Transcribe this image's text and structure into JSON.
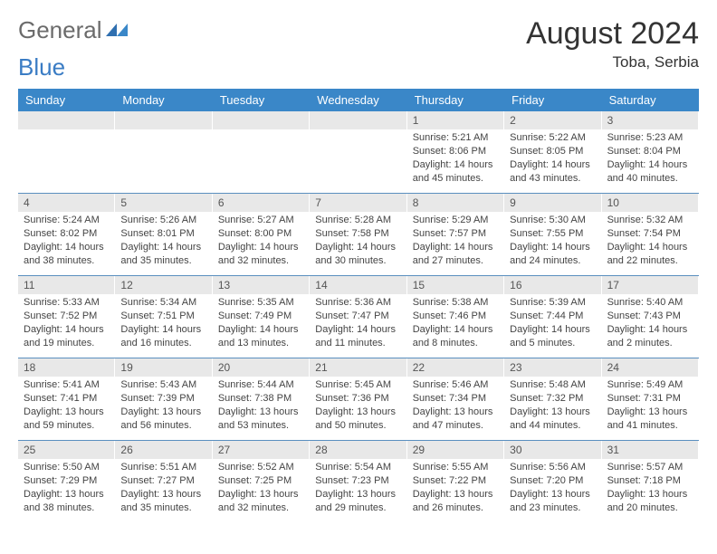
{
  "logo": {
    "general": "General",
    "blue": "Blue"
  },
  "title": "August 2024",
  "location": "Toba, Serbia",
  "colors": {
    "header_bg": "#3a87c8",
    "header_text": "#ffffff",
    "daynum_bg": "#e8e8e8",
    "week_divider": "#5a8fbf",
    "body_text": "#444444",
    "title_text": "#333333"
  },
  "weekdays": [
    "Sunday",
    "Monday",
    "Tuesday",
    "Wednesday",
    "Thursday",
    "Friday",
    "Saturday"
  ],
  "weeks": [
    [
      {
        "n": "",
        "sr": "",
        "ss": "",
        "dl1": "",
        "dl2": ""
      },
      {
        "n": "",
        "sr": "",
        "ss": "",
        "dl1": "",
        "dl2": ""
      },
      {
        "n": "",
        "sr": "",
        "ss": "",
        "dl1": "",
        "dl2": ""
      },
      {
        "n": "",
        "sr": "",
        "ss": "",
        "dl1": "",
        "dl2": ""
      },
      {
        "n": "1",
        "sr": "Sunrise: 5:21 AM",
        "ss": "Sunset: 8:06 PM",
        "dl1": "Daylight: 14 hours",
        "dl2": "and 45 minutes."
      },
      {
        "n": "2",
        "sr": "Sunrise: 5:22 AM",
        "ss": "Sunset: 8:05 PM",
        "dl1": "Daylight: 14 hours",
        "dl2": "and 43 minutes."
      },
      {
        "n": "3",
        "sr": "Sunrise: 5:23 AM",
        "ss": "Sunset: 8:04 PM",
        "dl1": "Daylight: 14 hours",
        "dl2": "and 40 minutes."
      }
    ],
    [
      {
        "n": "4",
        "sr": "Sunrise: 5:24 AM",
        "ss": "Sunset: 8:02 PM",
        "dl1": "Daylight: 14 hours",
        "dl2": "and 38 minutes."
      },
      {
        "n": "5",
        "sr": "Sunrise: 5:26 AM",
        "ss": "Sunset: 8:01 PM",
        "dl1": "Daylight: 14 hours",
        "dl2": "and 35 minutes."
      },
      {
        "n": "6",
        "sr": "Sunrise: 5:27 AM",
        "ss": "Sunset: 8:00 PM",
        "dl1": "Daylight: 14 hours",
        "dl2": "and 32 minutes."
      },
      {
        "n": "7",
        "sr": "Sunrise: 5:28 AM",
        "ss": "Sunset: 7:58 PM",
        "dl1": "Daylight: 14 hours",
        "dl2": "and 30 minutes."
      },
      {
        "n": "8",
        "sr": "Sunrise: 5:29 AM",
        "ss": "Sunset: 7:57 PM",
        "dl1": "Daylight: 14 hours",
        "dl2": "and 27 minutes."
      },
      {
        "n": "9",
        "sr": "Sunrise: 5:30 AM",
        "ss": "Sunset: 7:55 PM",
        "dl1": "Daylight: 14 hours",
        "dl2": "and 24 minutes."
      },
      {
        "n": "10",
        "sr": "Sunrise: 5:32 AM",
        "ss": "Sunset: 7:54 PM",
        "dl1": "Daylight: 14 hours",
        "dl2": "and 22 minutes."
      }
    ],
    [
      {
        "n": "11",
        "sr": "Sunrise: 5:33 AM",
        "ss": "Sunset: 7:52 PM",
        "dl1": "Daylight: 14 hours",
        "dl2": "and 19 minutes."
      },
      {
        "n": "12",
        "sr": "Sunrise: 5:34 AM",
        "ss": "Sunset: 7:51 PM",
        "dl1": "Daylight: 14 hours",
        "dl2": "and 16 minutes."
      },
      {
        "n": "13",
        "sr": "Sunrise: 5:35 AM",
        "ss": "Sunset: 7:49 PM",
        "dl1": "Daylight: 14 hours",
        "dl2": "and 13 minutes."
      },
      {
        "n": "14",
        "sr": "Sunrise: 5:36 AM",
        "ss": "Sunset: 7:47 PM",
        "dl1": "Daylight: 14 hours",
        "dl2": "and 11 minutes."
      },
      {
        "n": "15",
        "sr": "Sunrise: 5:38 AM",
        "ss": "Sunset: 7:46 PM",
        "dl1": "Daylight: 14 hours",
        "dl2": "and 8 minutes."
      },
      {
        "n": "16",
        "sr": "Sunrise: 5:39 AM",
        "ss": "Sunset: 7:44 PM",
        "dl1": "Daylight: 14 hours",
        "dl2": "and 5 minutes."
      },
      {
        "n": "17",
        "sr": "Sunrise: 5:40 AM",
        "ss": "Sunset: 7:43 PM",
        "dl1": "Daylight: 14 hours",
        "dl2": "and 2 minutes."
      }
    ],
    [
      {
        "n": "18",
        "sr": "Sunrise: 5:41 AM",
        "ss": "Sunset: 7:41 PM",
        "dl1": "Daylight: 13 hours",
        "dl2": "and 59 minutes."
      },
      {
        "n": "19",
        "sr": "Sunrise: 5:43 AM",
        "ss": "Sunset: 7:39 PM",
        "dl1": "Daylight: 13 hours",
        "dl2": "and 56 minutes."
      },
      {
        "n": "20",
        "sr": "Sunrise: 5:44 AM",
        "ss": "Sunset: 7:38 PM",
        "dl1": "Daylight: 13 hours",
        "dl2": "and 53 minutes."
      },
      {
        "n": "21",
        "sr": "Sunrise: 5:45 AM",
        "ss": "Sunset: 7:36 PM",
        "dl1": "Daylight: 13 hours",
        "dl2": "and 50 minutes."
      },
      {
        "n": "22",
        "sr": "Sunrise: 5:46 AM",
        "ss": "Sunset: 7:34 PM",
        "dl1": "Daylight: 13 hours",
        "dl2": "and 47 minutes."
      },
      {
        "n": "23",
        "sr": "Sunrise: 5:48 AM",
        "ss": "Sunset: 7:32 PM",
        "dl1": "Daylight: 13 hours",
        "dl2": "and 44 minutes."
      },
      {
        "n": "24",
        "sr": "Sunrise: 5:49 AM",
        "ss": "Sunset: 7:31 PM",
        "dl1": "Daylight: 13 hours",
        "dl2": "and 41 minutes."
      }
    ],
    [
      {
        "n": "25",
        "sr": "Sunrise: 5:50 AM",
        "ss": "Sunset: 7:29 PM",
        "dl1": "Daylight: 13 hours",
        "dl2": "and 38 minutes."
      },
      {
        "n": "26",
        "sr": "Sunrise: 5:51 AM",
        "ss": "Sunset: 7:27 PM",
        "dl1": "Daylight: 13 hours",
        "dl2": "and 35 minutes."
      },
      {
        "n": "27",
        "sr": "Sunrise: 5:52 AM",
        "ss": "Sunset: 7:25 PM",
        "dl1": "Daylight: 13 hours",
        "dl2": "and 32 minutes."
      },
      {
        "n": "28",
        "sr": "Sunrise: 5:54 AM",
        "ss": "Sunset: 7:23 PM",
        "dl1": "Daylight: 13 hours",
        "dl2": "and 29 minutes."
      },
      {
        "n": "29",
        "sr": "Sunrise: 5:55 AM",
        "ss": "Sunset: 7:22 PM",
        "dl1": "Daylight: 13 hours",
        "dl2": "and 26 minutes."
      },
      {
        "n": "30",
        "sr": "Sunrise: 5:56 AM",
        "ss": "Sunset: 7:20 PM",
        "dl1": "Daylight: 13 hours",
        "dl2": "and 23 minutes."
      },
      {
        "n": "31",
        "sr": "Sunrise: 5:57 AM",
        "ss": "Sunset: 7:18 PM",
        "dl1": "Daylight: 13 hours",
        "dl2": "and 20 minutes."
      }
    ]
  ]
}
